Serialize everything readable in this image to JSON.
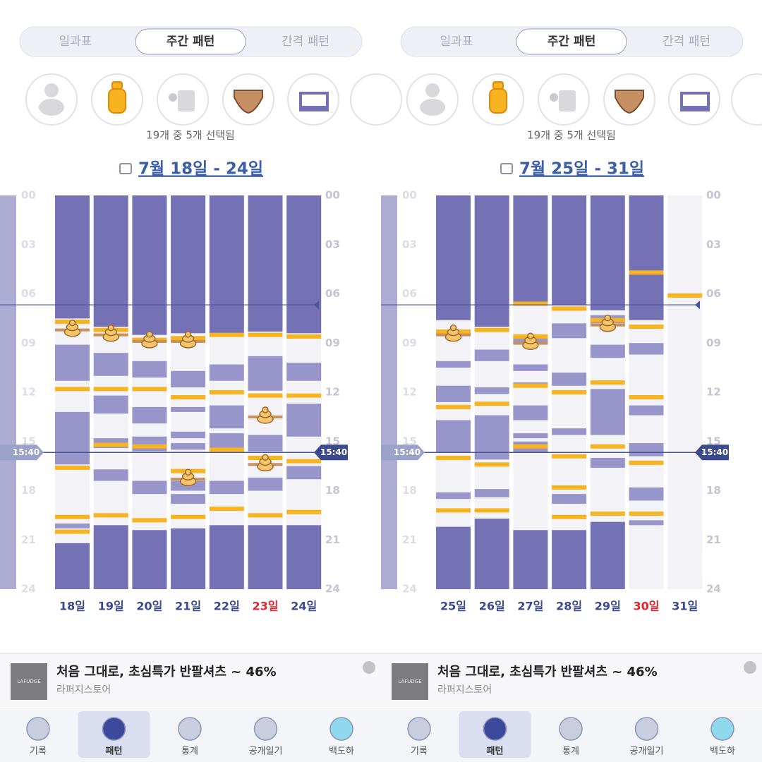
{
  "panels": [
    {
      "tabs": [
        "일과표",
        "주간 패턴",
        "간격 패턴"
      ],
      "selected_tab": 1,
      "selected_count": "19개 중 5개 선택됨",
      "date_range": "7월 18일 - 24일",
      "hours": [
        "00",
        "03",
        "06",
        "09",
        "12",
        "15",
        "18",
        "21",
        "24"
      ],
      "now": "15:40",
      "reference_line": 6.67,
      "days": [
        {
          "label": "18일",
          "holiday": false,
          "night": [
            [
              0,
              7.5
            ],
            [
              21.2,
              24
            ]
          ],
          "naps": [
            [
              9.1,
              11.3
            ],
            [
              13.2,
              16.4
            ],
            [
              20.0,
              20.3
            ]
          ],
          "feeds": [
            7.7,
            11.8,
            16.6,
            19.6,
            20.5
          ],
          "poops": [
            8.2
          ]
        },
        {
          "label": "19일",
          "holiday": false,
          "night": [
            [
              0,
              8.0
            ],
            [
              20.1,
              24
            ]
          ],
          "naps": [
            [
              9.6,
              11.0
            ],
            [
              12.2,
              13.3
            ],
            [
              14.8,
              15.4
            ],
            [
              16.7,
              17.4
            ]
          ],
          "feeds": [
            8.2,
            11.8,
            15.2,
            19.5
          ],
          "poops": [
            8.5
          ]
        },
        {
          "label": "20일",
          "holiday": false,
          "night": [
            [
              0,
              8.5
            ],
            [
              20.4,
              24
            ]
          ],
          "naps": [
            [
              10.1,
              11.1
            ],
            [
              12.9,
              13.9
            ],
            [
              14.7,
              15.6
            ],
            [
              17.4,
              18.2
            ]
          ],
          "feeds": [
            8.8,
            11.8,
            15.3,
            19.8
          ],
          "poops": [
            8.9
          ]
        },
        {
          "label": "21일",
          "holiday": false,
          "night": [
            [
              0,
              8.4
            ],
            [
              20.3,
              24
            ]
          ],
          "naps": [
            [
              10.7,
              11.7
            ],
            [
              12.9,
              13.2
            ],
            [
              14.4,
              14.8
            ],
            [
              15.1,
              15.5
            ],
            [
              17.4,
              18.0
            ],
            [
              18.2,
              18.8
            ]
          ],
          "feeds": [
            8.7,
            12.3,
            16.8,
            19.6
          ],
          "poops": [
            8.9,
            17.3
          ]
        },
        {
          "label": "22일",
          "holiday": false,
          "night": [
            [
              0,
              8.4
            ],
            [
              20.1,
              24
            ]
          ],
          "naps": [
            [
              10.3,
              11.3
            ],
            [
              12.8,
              14.2
            ],
            [
              14.5,
              15.4
            ],
            [
              17.4,
              18.2
            ]
          ],
          "feeds": [
            8.5,
            12.0,
            15.5,
            19.1
          ],
          "poops": []
        },
        {
          "label": "23일",
          "holiday": true,
          "night": [
            [
              0,
              8.3
            ],
            [
              20.1,
              24
            ]
          ],
          "naps": [
            [
              9.8,
              11.9
            ],
            [
              14.6,
              15.6
            ],
            [
              17.2,
              18.0
            ]
          ],
          "feeds": [
            8.5,
            12.2,
            16.0,
            19.5
          ],
          "poops": [
            13.5,
            16.4
          ]
        },
        {
          "label": "24일",
          "holiday": false,
          "night": [
            [
              0,
              8.4
            ],
            [
              20.1,
              24
            ]
          ],
          "naps": [
            [
              10.2,
              11.3
            ],
            [
              12.7,
              14.7
            ],
            [
              16.5,
              17.3
            ]
          ],
          "feeds": [
            8.6,
            12.2,
            16.2,
            19.3
          ],
          "poops": []
        }
      ],
      "ad": {
        "logo": "LAFUDGE",
        "title": "처음 그대로, 초심특가 반팔셔츠 ~ 46%",
        "store": "라퍼지스토어"
      },
      "nav": [
        "기록",
        "패턴",
        "통계",
        "공개일기",
        "백도하"
      ],
      "nav_selected": 1
    },
    {
      "tabs": [
        "일과표",
        "주간 패턴",
        "간격 패턴"
      ],
      "selected_tab": 1,
      "selected_count": "19개 중 5개 선택됨",
      "date_range": "7월 25일 - 31일",
      "hours": [
        "00",
        "03",
        "06",
        "09",
        "12",
        "15",
        "18",
        "21",
        "24"
      ],
      "now": "15:40",
      "reference_line": 6.67,
      "days": [
        {
          "label": "25일",
          "holiday": false,
          "night": [
            [
              0,
              7.6
            ],
            [
              20.2,
              24
            ]
          ],
          "naps": [
            [
              10.1,
              10.5
            ],
            [
              11.6,
              12.6
            ],
            [
              13.7,
              15.7
            ],
            [
              18.1,
              18.5
            ]
          ],
          "feeds": [
            8.3,
            12.9,
            16.0,
            19.2
          ],
          "poops": [
            8.5
          ]
        },
        {
          "label": "26일",
          "holiday": false,
          "night": [
            [
              0,
              8.0
            ],
            [
              19.7,
              24
            ]
          ],
          "naps": [
            [
              9.4,
              10.1
            ],
            [
              11.7,
              12.1
            ],
            [
              13.4,
              16.1
            ],
            [
              17.9,
              18.4
            ]
          ],
          "feeds": [
            8.2,
            12.7,
            16.4,
            19.2
          ],
          "poops": []
        },
        {
          "label": "27일",
          "holiday": false,
          "night": [
            [
              0,
              6.7
            ],
            [
              20.4,
              24
            ]
          ],
          "naps": [
            [
              8.6,
              9.1
            ],
            [
              10.3,
              10.7
            ],
            [
              11.4,
              11.7
            ],
            [
              12.8,
              13.7
            ],
            [
              14.5,
              14.8
            ],
            [
              15.0,
              15.7
            ]
          ],
          "feeds": [
            6.6,
            8.6,
            11.6,
            15.3
          ],
          "poops": [
            9.0
          ]
        },
        {
          "label": "28일",
          "holiday": false,
          "night": [
            [
              0,
              6.7
            ],
            [
              20.4,
              24
            ]
          ],
          "naps": [
            [
              7.8,
              8.7
            ],
            [
              10.8,
              11.6
            ],
            [
              14.2,
              14.6
            ],
            [
              18.2,
              18.8
            ]
          ],
          "feeds": [
            6.9,
            12.0,
            15.9,
            17.8,
            19.6
          ],
          "poops": []
        },
        {
          "label": "29일",
          "holiday": false,
          "night": [
            [
              0,
              7.0
            ],
            [
              19.9,
              24
            ]
          ],
          "naps": [
            [
              7.3,
              7.8
            ],
            [
              9.1,
              9.9
            ],
            [
              11.8,
              14.6
            ],
            [
              16.0,
              16.6
            ]
          ],
          "feeds": [
            7.6,
            11.4,
            15.3,
            19.4
          ],
          "poops": [
            7.9
          ]
        },
        {
          "label": "30일",
          "holiday": true,
          "night": [
            [
              0,
              7.6
            ]
          ],
          "naps": [
            [
              9.0,
              9.7
            ],
            [
              12.8,
              13.4
            ],
            [
              15.1,
              15.9
            ],
            [
              17.8,
              18.6
            ],
            [
              19.8,
              20.1
            ]
          ],
          "feeds": [
            4.7,
            8.0,
            12.3,
            16.3,
            19.4
          ],
          "poops": []
        },
        {
          "label": "31일",
          "holiday": false,
          "night": [],
          "naps": [],
          "feeds": [
            6.1
          ],
          "poops": []
        }
      ],
      "ad": {
        "logo": "LAFUDGE",
        "title": "처음 그대로, 초심특가 반팔셔츠 ~ 46%",
        "store": "라퍼지스토어"
      },
      "nav": [
        "기록",
        "패턴",
        "통계",
        "공개일기",
        "백도하"
      ],
      "nav_selected": 1
    }
  ]
}
